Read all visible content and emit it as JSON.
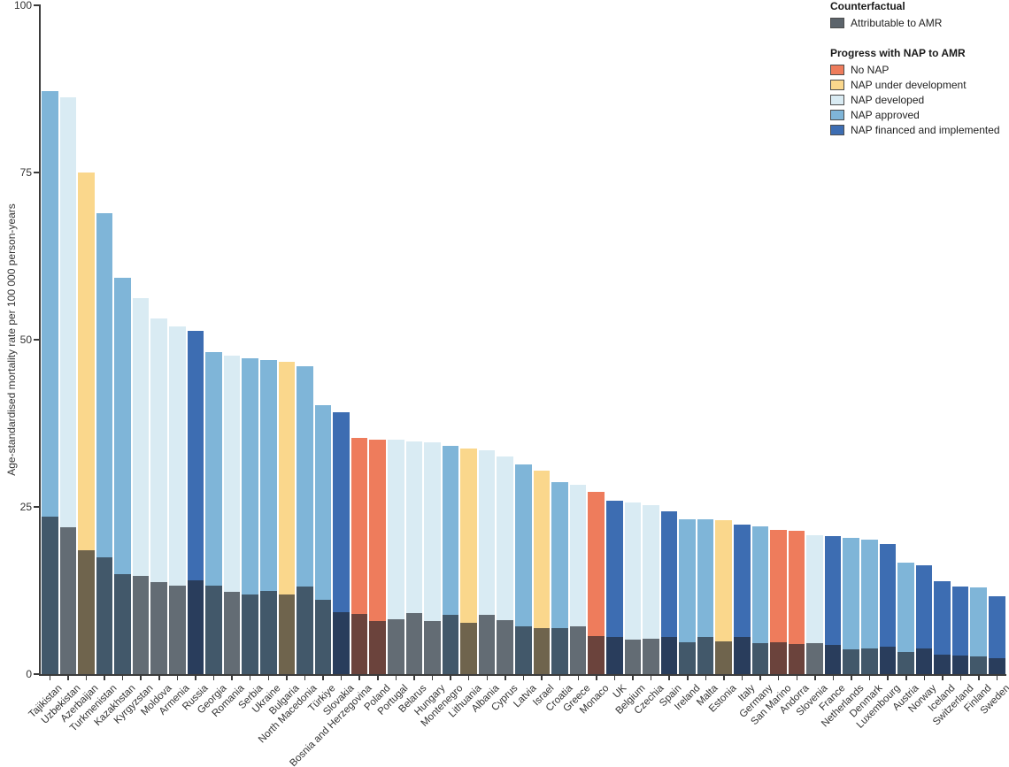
{
  "legend": {
    "counterfactual_title": "Counterfactual",
    "counterfactual_items": [
      {
        "label": "Attributable to AMR",
        "color": "#5C646B"
      }
    ],
    "nap_title": "Progress with NAP to AMR",
    "nap_items": [
      {
        "key": "no_nap",
        "label": "No NAP",
        "color": "#EE7C5C"
      },
      {
        "key": "under_development",
        "label": "NAP under development",
        "color": "#FAD78C"
      },
      {
        "key": "developed",
        "label": "NAP developed",
        "color": "#D9EBF3"
      },
      {
        "key": "approved",
        "label": "NAP approved",
        "color": "#7FB5D8"
      },
      {
        "key": "financed",
        "label": "NAP financed and implemented",
        "color": "#3D6DB2"
      }
    ]
  },
  "chart_data": {
    "type": "bar",
    "title": "",
    "xlabel": "",
    "ylabel": "Age-standardised mortality rate per 100 000 person-years",
    "ylim": [
      0,
      100
    ],
    "yticks": [
      0,
      25,
      50,
      75,
      100
    ],
    "grid": false,
    "legend_position": "top-right",
    "description": "Total bar height = age-standardised mortality rate associated with AMR, coloured by national action plan (NAP) progress category; dark overlaid lower segment = rate attributable to AMR (counterfactual).",
    "countries": [
      {
        "name": "Tajikistan",
        "total": 87.2,
        "attributable": 23.5,
        "nap": "approved"
      },
      {
        "name": "Uzbekistan",
        "total": 86.2,
        "attributable": 21.9,
        "nap": "developed"
      },
      {
        "name": "Azerbaijan",
        "total": 75.0,
        "attributable": 18.5,
        "nap": "under_development"
      },
      {
        "name": "Turkmenistan",
        "total": 68.9,
        "attributable": 17.4,
        "nap": "approved"
      },
      {
        "name": "Kazakhstan",
        "total": 59.3,
        "attributable": 15.0,
        "nap": "approved"
      },
      {
        "name": "Kyrgyzstan",
        "total": 56.2,
        "attributable": 14.7,
        "nap": "developed"
      },
      {
        "name": "Moldova",
        "total": 53.2,
        "attributable": 13.7,
        "nap": "developed"
      },
      {
        "name": "Armenia",
        "total": 52.0,
        "attributable": 13.2,
        "nap": "developed"
      },
      {
        "name": "Russia",
        "total": 51.3,
        "attributable": 14.0,
        "nap": "financed"
      },
      {
        "name": "Georgia",
        "total": 48.1,
        "attributable": 13.2,
        "nap": "approved"
      },
      {
        "name": "Romania",
        "total": 47.6,
        "attributable": 12.3,
        "nap": "developed"
      },
      {
        "name": "Serbia",
        "total": 47.2,
        "attributable": 11.9,
        "nap": "approved"
      },
      {
        "name": "Ukraine",
        "total": 46.9,
        "attributable": 12.5,
        "nap": "approved"
      },
      {
        "name": "Bulgaria",
        "total": 46.7,
        "attributable": 11.9,
        "nap": "under_development"
      },
      {
        "name": "North Macedonia",
        "total": 46.0,
        "attributable": 13.1,
        "nap": "approved"
      },
      {
        "name": "Türkiye",
        "total": 40.2,
        "attributable": 11.1,
        "nap": "approved"
      },
      {
        "name": "Slovakia",
        "total": 39.2,
        "attributable": 9.2,
        "nap": "financed"
      },
      {
        "name": "Bosnia and Herzegovina",
        "total": 35.3,
        "attributable": 9.0,
        "nap": "no_nap"
      },
      {
        "name": "Poland",
        "total": 35.1,
        "attributable": 8.0,
        "nap": "no_nap"
      },
      {
        "name": "Portugal",
        "total": 35.0,
        "attributable": 8.2,
        "nap": "developed"
      },
      {
        "name": "Belarus",
        "total": 34.8,
        "attributable": 9.1,
        "nap": "developed"
      },
      {
        "name": "Hungary",
        "total": 34.6,
        "attributable": 8.0,
        "nap": "developed"
      },
      {
        "name": "Montenegro",
        "total": 34.1,
        "attributable": 8.9,
        "nap": "approved"
      },
      {
        "name": "Lithuania",
        "total": 33.7,
        "attributable": 7.7,
        "nap": "under_development"
      },
      {
        "name": "Albania",
        "total": 33.5,
        "attributable": 8.9,
        "nap": "developed"
      },
      {
        "name": "Cyprus",
        "total": 32.5,
        "attributable": 8.1,
        "nap": "developed"
      },
      {
        "name": "Latvia",
        "total": 31.4,
        "attributable": 7.1,
        "nap": "approved"
      },
      {
        "name": "Israel",
        "total": 30.4,
        "attributable": 6.9,
        "nap": "under_development"
      },
      {
        "name": "Croatia",
        "total": 28.7,
        "attributable": 6.9,
        "nap": "approved"
      },
      {
        "name": "Greece",
        "total": 28.3,
        "attributable": 7.2,
        "nap": "developed"
      },
      {
        "name": "Monaco",
        "total": 27.2,
        "attributable": 5.7,
        "nap": "no_nap"
      },
      {
        "name": "UK",
        "total": 25.9,
        "attributable": 5.5,
        "nap": "financed"
      },
      {
        "name": "Belgium",
        "total": 25.7,
        "attributable": 5.2,
        "nap": "developed"
      },
      {
        "name": "Czechia",
        "total": 25.3,
        "attributable": 5.3,
        "nap": "developed"
      },
      {
        "name": "Spain",
        "total": 24.4,
        "attributable": 5.6,
        "nap": "financed"
      },
      {
        "name": "Ireland",
        "total": 23.2,
        "attributable": 4.8,
        "nap": "approved"
      },
      {
        "name": "Malta",
        "total": 23.2,
        "attributable": 5.5,
        "nap": "approved"
      },
      {
        "name": "Estonia",
        "total": 23.0,
        "attributable": 4.9,
        "nap": "under_development"
      },
      {
        "name": "Italy",
        "total": 22.4,
        "attributable": 5.5,
        "nap": "financed"
      },
      {
        "name": "Germany",
        "total": 22.1,
        "attributable": 4.6,
        "nap": "approved"
      },
      {
        "name": "San Marino",
        "total": 21.6,
        "attributable": 4.8,
        "nap": "no_nap"
      },
      {
        "name": "Andorra",
        "total": 21.4,
        "attributable": 4.5,
        "nap": "no_nap"
      },
      {
        "name": "Slovenia",
        "total": 20.8,
        "attributable": 4.6,
        "nap": "developed"
      },
      {
        "name": "France",
        "total": 20.6,
        "attributable": 4.4,
        "nap": "financed"
      },
      {
        "name": "Netherlands",
        "total": 20.4,
        "attributable": 3.7,
        "nap": "approved"
      },
      {
        "name": "Denmark",
        "total": 20.1,
        "attributable": 3.9,
        "nap": "approved"
      },
      {
        "name": "Luxembourg",
        "total": 19.5,
        "attributable": 4.1,
        "nap": "financed"
      },
      {
        "name": "Austria",
        "total": 16.7,
        "attributable": 3.3,
        "nap": "approved"
      },
      {
        "name": "Norway",
        "total": 16.3,
        "attributable": 3.9,
        "nap": "financed"
      },
      {
        "name": "Iceland",
        "total": 13.9,
        "attributable": 2.9,
        "nap": "financed"
      },
      {
        "name": "Switzerland",
        "total": 13.1,
        "attributable": 2.8,
        "nap": "financed"
      },
      {
        "name": "Finland",
        "total": 13.0,
        "attributable": 2.7,
        "nap": "approved"
      },
      {
        "name": "Sweden",
        "total": 11.7,
        "attributable": 2.4,
        "nap": "financed"
      }
    ]
  }
}
